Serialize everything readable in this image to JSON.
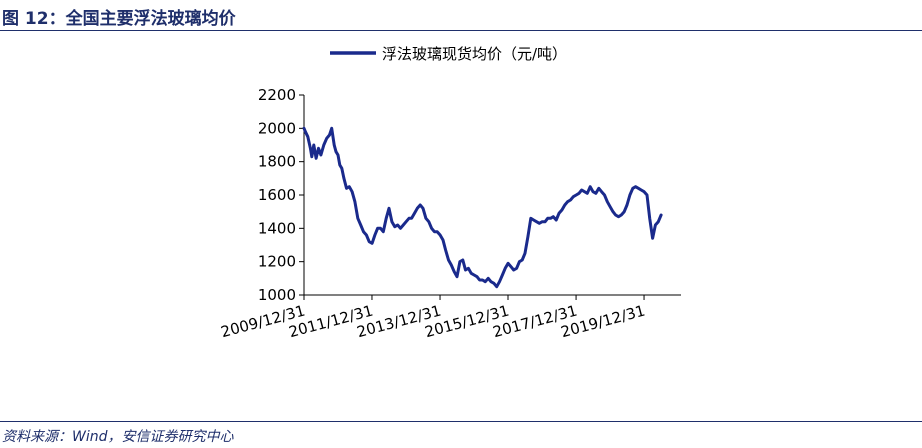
{
  "figure": {
    "title": "图 12：全国主要浮法玻璃均价",
    "source": "资料来源：Wind，安信证券研究中心"
  },
  "colors": {
    "series": "#1a2a8c",
    "accent": "#1f2f6b",
    "axis": "#000000"
  },
  "chart_data": {
    "type": "line",
    "title": "",
    "xlabel": "",
    "ylabel": "",
    "x_ticks": [
      "2009/12/31",
      "2011/12/31",
      "2013/12/31",
      "2015/12/31",
      "2017/12/31",
      "2019/12/31"
    ],
    "y_ticks": [
      1000,
      1200,
      1400,
      1600,
      1800,
      2000,
      2200
    ],
    "xlim": [
      "2009-12-31",
      "2021-01-31"
    ],
    "ylim": [
      1000,
      2200
    ],
    "grid": false,
    "legend": "top-center",
    "series": [
      {
        "name": "浮法玻璃现货均价（元/吨）",
        "color": "#1a2a8c",
        "x": [
          "2009-12-31",
          "2010-01-15",
          "2010-02-10",
          "2010-03-10",
          "2010-03-25",
          "2010-04-15",
          "2010-05-10",
          "2010-06-05",
          "2010-07-01",
          "2010-08-01",
          "2010-09-01",
          "2010-10-01",
          "2010-10-25",
          "2010-11-20",
          "2010-12-10",
          "2010-12-31",
          "2011-01-20",
          "2011-02-10",
          "2011-03-05",
          "2011-04-01",
          "2011-05-01",
          "2011-06-01",
          "2011-07-01",
          "2011-08-01",
          "2011-09-01",
          "2011-10-01",
          "2011-11-01",
          "2011-12-01",
          "2012-01-01",
          "2012-02-01",
          "2012-03-01",
          "2012-04-01",
          "2012-05-01",
          "2012-06-01",
          "2012-07-01",
          "2012-08-01",
          "2012-09-01",
          "2012-10-01",
          "2012-11-01",
          "2012-12-01",
          "2013-01-01",
          "2013-02-01",
          "2013-03-01",
          "2013-04-01",
          "2013-05-01",
          "2013-06-01",
          "2013-07-01",
          "2013-08-01",
          "2013-09-01",
          "2013-10-01",
          "2013-11-01",
          "2013-12-01",
          "2014-01-01",
          "2014-02-01",
          "2014-03-01",
          "2014-04-01",
          "2014-05-01",
          "2014-06-01",
          "2014-07-01",
          "2014-08-01",
          "2014-09-01",
          "2014-10-01",
          "2014-11-01",
          "2014-12-01",
          "2015-01-01",
          "2015-02-01",
          "2015-03-01",
          "2015-04-01",
          "2015-05-01",
          "2015-06-01",
          "2015-07-01",
          "2015-08-01",
          "2015-09-01",
          "2015-10-01",
          "2015-11-01",
          "2015-12-01",
          "2016-01-01",
          "2016-02-01",
          "2016-03-01",
          "2016-04-01",
          "2016-05-01",
          "2016-06-01",
          "2016-07-01",
          "2016-08-01",
          "2016-09-01",
          "2016-10-01",
          "2016-11-01",
          "2016-12-01",
          "2017-01-01",
          "2017-02-01",
          "2017-03-01",
          "2017-04-01",
          "2017-05-01",
          "2017-06-01",
          "2017-07-01",
          "2017-08-01",
          "2017-09-01",
          "2017-10-01",
          "2017-11-01",
          "2017-12-01",
          "2018-01-01",
          "2018-02-01",
          "2018-03-01",
          "2018-04-01",
          "2018-05-01",
          "2018-06-01",
          "2018-07-01",
          "2018-08-01",
          "2018-09-01",
          "2018-10-01",
          "2018-11-01",
          "2018-12-01",
          "2019-01-01",
          "2019-02-01",
          "2019-03-01",
          "2019-04-01",
          "2019-05-01",
          "2019-06-01",
          "2019-07-01",
          "2019-08-01",
          "2019-09-01",
          "2019-10-01",
          "2019-11-01",
          "2019-12-01",
          "2020-01-01",
          "2020-02-01",
          "2020-03-01",
          "2020-04-01",
          "2020-05-01",
          "2020-06-01",
          "2020-07-01"
        ],
        "values": [
          2000,
          1980,
          1950,
          1880,
          1830,
          1900,
          1820,
          1880,
          1840,
          1900,
          1940,
          1960,
          2000,
          1900,
          1860,
          1840,
          1780,
          1760,
          1700,
          1640,
          1650,
          1620,
          1560,
          1460,
          1420,
          1380,
          1360,
          1320,
          1310,
          1360,
          1400,
          1400,
          1380,
          1460,
          1520,
          1440,
          1410,
          1420,
          1400,
          1420,
          1440,
          1460,
          1460,
          1490,
          1520,
          1540,
          1520,
          1460,
          1440,
          1400,
          1380,
          1380,
          1360,
          1330,
          1270,
          1210,
          1180,
          1140,
          1110,
          1200,
          1210,
          1150,
          1160,
          1130,
          1120,
          1110,
          1090,
          1090,
          1080,
          1100,
          1080,
          1070,
          1050,
          1080,
          1120,
          1160,
          1190,
          1170,
          1150,
          1160,
          1200,
          1210,
          1250,
          1350,
          1460,
          1450,
          1440,
          1430,
          1440,
          1440,
          1460,
          1460,
          1470,
          1450,
          1490,
          1510,
          1540,
          1560,
          1570,
          1590,
          1600,
          1610,
          1630,
          1620,
          1610,
          1650,
          1620,
          1610,
          1640,
          1620,
          1600,
          1560,
          1530,
          1500,
          1480,
          1470,
          1480,
          1500,
          1540,
          1600,
          1640,
          1650,
          1640,
          1630,
          1620,
          1600,
          1460,
          1340,
          1420,
          1440,
          1480
        ]
      }
    ]
  }
}
